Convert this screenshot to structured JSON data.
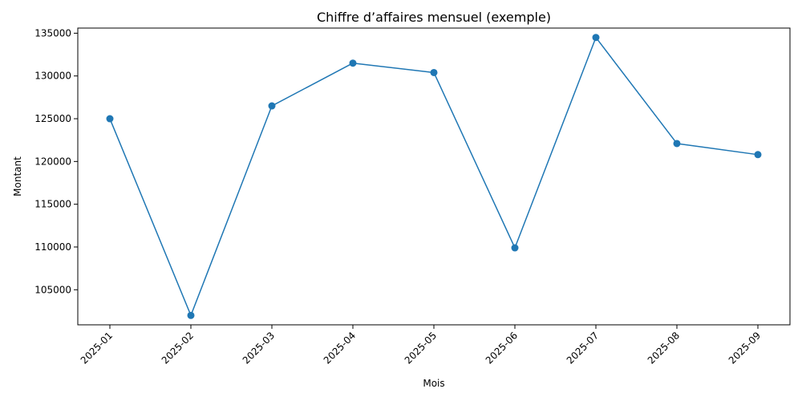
{
  "chart_data": {
    "type": "line",
    "title": "Chiffre d’affaires mensuel (exemple)",
    "xlabel": "Mois",
    "ylabel": "Montant",
    "categories": [
      "2025-01",
      "2025-02",
      "2025-03",
      "2025-04",
      "2025-05",
      "2025-06",
      "2025-07",
      "2025-08",
      "2025-09"
    ],
    "series": [
      {
        "values": [
          125000,
          102000,
          126500,
          131500,
          130400,
          109900,
          134500,
          122100,
          120800
        ],
        "color": "#1f77b4",
        "marker": "circle"
      }
    ],
    "ylim": [
      100900,
      135600
    ],
    "yticks": [
      105000,
      110000,
      115000,
      120000,
      125000,
      130000,
      135000
    ],
    "grid": false,
    "legend": "none",
    "xtick_rotation": 45
  }
}
